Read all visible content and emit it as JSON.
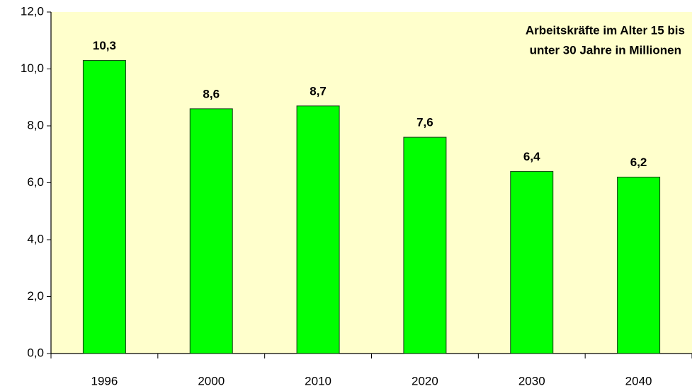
{
  "chart_data": {
    "type": "bar",
    "annotation_lines": [
      "Arbeitskräfte im Alter 15 bis",
      "unter 30 Jahre in Millionen"
    ],
    "categories": [
      "1996",
      "2000",
      "2010",
      "2020",
      "2030",
      "2040"
    ],
    "values": [
      10.3,
      8.6,
      8.7,
      7.6,
      6.4,
      6.2
    ],
    "value_labels": [
      "10,3",
      "8,6",
      "8,7",
      "7,6",
      "6,4",
      "6,2"
    ],
    "color": "#00ff00",
    "ylim": [
      0,
      12
    ],
    "yticks": [
      {
        "value": 0,
        "label": "0,0"
      },
      {
        "value": 2,
        "label": "2,0"
      },
      {
        "value": 4,
        "label": "4,0"
      },
      {
        "value": 6,
        "label": "6,0"
      },
      {
        "value": 8,
        "label": "8,0"
      },
      {
        "value": 10,
        "label": "10,0"
      },
      {
        "value": 12,
        "label": "12,0"
      }
    ]
  }
}
